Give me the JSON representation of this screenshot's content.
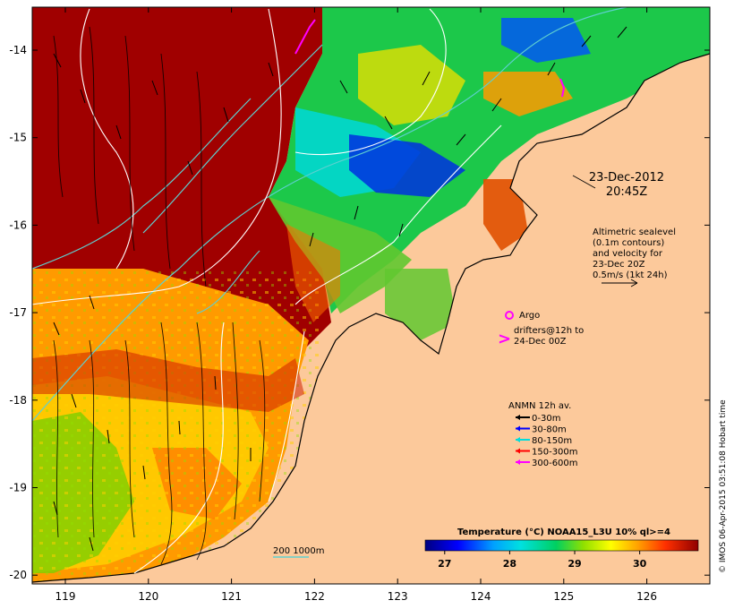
{
  "map": {
    "title_date": "23-Dec-2012",
    "title_time": "20:45Z",
    "lat_labels": [
      "-14",
      "-15",
      "-16",
      "-17",
      "-18",
      "-19",
      "-20"
    ],
    "lon_labels": [
      "119",
      "120",
      "121",
      "122",
      "123",
      "124",
      "125",
      "126"
    ],
    "altimetry_note": [
      "Altimetric sealevel",
      "(0.1m contours)",
      "and velocity for",
      "23-Dec 20Z",
      "0.5m/s (1kt 24h)"
    ],
    "argo_label": "Argo",
    "drifters_label": [
      "drifters@12h to",
      "24-Dec 00Z"
    ],
    "anmn_title": "ANMN 12h av.",
    "anmn_legend": [
      {
        "label": "0-30m",
        "color": "#000000"
      },
      {
        "label": "30-80m",
        "color": "#0000ff"
      },
      {
        "label": "80-150m",
        "color": "#00dddd"
      },
      {
        "label": "150-300m",
        "color": "#ff0000"
      },
      {
        "label": "300-600m",
        "color": "#ff00ff"
      }
    ],
    "isobath_label": "200  1000m",
    "colorbar_title": "Temperature (°C) NOAA15_L3U 10% ql>=4",
    "colorbar_ticks": [
      "27",
      "28",
      "29",
      "30"
    ],
    "colorbar_range": [
      26.7,
      30.9
    ],
    "credit": "© IMOS 06-Apr-2015 03:51:08 Hobart time",
    "colors": {
      "land": "#fcc99b",
      "argo": "#ff00ff",
      "isobath": "#5fd0d0",
      "hot": "#a00000"
    }
  }
}
